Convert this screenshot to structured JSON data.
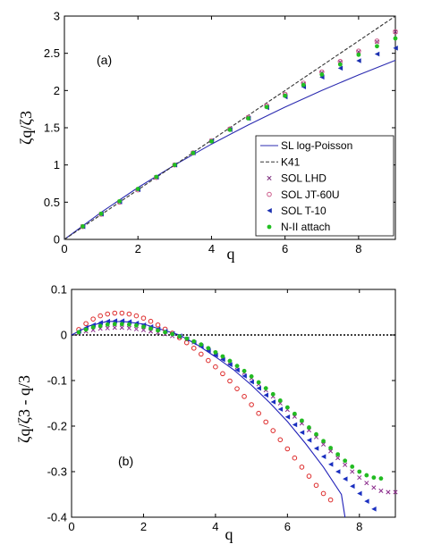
{
  "chart_data": [
    {
      "type": "line",
      "panel_label": "(a)",
      "xlabel": "q",
      "ylabel": "ζq/ζ3",
      "xlim": [
        0,
        9
      ],
      "ylim": [
        0,
        3
      ],
      "xticks": [
        "0",
        "2",
        "4",
        "6",
        "8"
      ],
      "yticks": [
        "0",
        "0.5",
        "1",
        "1.5",
        "2",
        "2.5",
        "3"
      ],
      "legend": {
        "placement": "lower-right",
        "entries": [
          "SL log-Poisson",
          "K41",
          "SOL LHD",
          "SOL JT-60U",
          "SOL T-10",
          "N-II attach"
        ]
      },
      "series": [
        {
          "name": "SL log-Poisson",
          "style": "solid-line",
          "color": "#2b2bb0",
          "x": [
            0,
            1,
            2,
            3,
            4,
            5,
            6,
            7,
            8,
            9
          ],
          "y": [
            0,
            0.364,
            0.696,
            1.0,
            1.28,
            1.538,
            1.778,
            2.001,
            2.21,
            2.406
          ]
        },
        {
          "name": "K41",
          "style": "dashed-line",
          "color": "#333333",
          "x": [
            0,
            9
          ],
          "y": [
            0,
            3.0
          ]
        },
        {
          "name": "SOL LHD",
          "style": "x-marker",
          "color": "#7a2a7a",
          "x": [
            0.5,
            1,
            1.5,
            2,
            2.5,
            3,
            3.5,
            4,
            4.5,
            5,
            5.5,
            6,
            6.5,
            7,
            7.5,
            8,
            8.5,
            9
          ],
          "y": [
            0.173,
            0.34,
            0.503,
            0.669,
            0.835,
            1.0,
            1.162,
            1.323,
            1.48,
            1.635,
            1.788,
            1.94,
            2.09,
            2.24,
            2.383,
            2.52,
            2.655,
            2.787
          ]
        },
        {
          "name": "SOL JT-60U",
          "style": "o-marker",
          "color": "#cc5a8a",
          "x": [
            0.5,
            1,
            1.5,
            2,
            2.5,
            3,
            3.5,
            4,
            4.5,
            5,
            5.5,
            6,
            6.5,
            7,
            7.5,
            8,
            8.5,
            9
          ],
          "y": [
            0.172,
            0.338,
            0.5,
            0.665,
            0.832,
            1.0,
            1.163,
            1.325,
            1.484,
            1.64,
            1.795,
            1.95,
            2.1,
            2.25,
            2.39,
            2.53,
            2.665,
            2.79
          ]
        },
        {
          "name": "SOL T-10",
          "style": "triangle-marker",
          "color": "#1a2fb0",
          "x": [
            0.5,
            1,
            1.5,
            2,
            2.5,
            3,
            3.5,
            4,
            4.5,
            5,
            5.5,
            6,
            6.5,
            7,
            7.5,
            8,
            8.5,
            9
          ],
          "y": [
            0.172,
            0.34,
            0.505,
            0.67,
            0.836,
            1.0,
            1.163,
            1.323,
            1.475,
            1.625,
            1.77,
            1.915,
            2.05,
            2.18,
            2.3,
            2.4,
            2.49,
            2.57
          ]
        },
        {
          "name": "N-II attach",
          "style": "dot-marker",
          "color": "#22c022",
          "x": [
            0.5,
            1,
            1.5,
            2,
            2.5,
            3,
            3.5,
            4,
            4.5,
            5,
            5.5,
            6,
            6.5,
            7,
            7.5,
            8,
            8.5,
            9
          ],
          "y": [
            0.175,
            0.345,
            0.512,
            0.678,
            0.84,
            1.0,
            1.16,
            1.317,
            1.472,
            1.626,
            1.778,
            1.93,
            2.075,
            2.215,
            2.35,
            2.48,
            2.595,
            2.7
          ]
        }
      ]
    },
    {
      "type": "line",
      "panel_label": "(b)",
      "xlabel": "q",
      "ylabel": "ζq/ζ3 - q/3",
      "xlim": [
        0,
        9
      ],
      "ylim": [
        -0.4,
        0.1
      ],
      "xticks": [
        "0",
        "2",
        "4",
        "6",
        "8"
      ],
      "yticks": [
        "0.1",
        "0",
        "-0.1",
        "-0.2",
        "-0.3",
        "-0.4"
      ],
      "series": [
        {
          "name": "zero line",
          "style": "dotted-line",
          "color": "#000000",
          "x": [
            0,
            9
          ],
          "y": [
            0,
            0
          ]
        },
        {
          "name": "SL log-Poisson",
          "style": "solid-line",
          "color": "#2020b8",
          "x": [
            0,
            0.5,
            1,
            1.5,
            2,
            2.5,
            3,
            3.5,
            4,
            4.5,
            5,
            5.5,
            6,
            6.5,
            7,
            7.5,
            7.6
          ],
          "y": [
            0,
            0.02,
            0.03,
            0.029,
            0.024,
            0.012,
            0,
            -0.022,
            -0.048,
            -0.076,
            -0.11,
            -0.148,
            -0.19,
            -0.238,
            -0.29,
            -0.35,
            -0.4
          ]
        },
        {
          "name": "SOL LHD",
          "style": "x-marker",
          "color": "#8a2a8a",
          "x": [
            0.2,
            0.4,
            0.6,
            0.8,
            1.0,
            1.2,
            1.4,
            1.6,
            1.8,
            2.0,
            2.2,
            2.4,
            2.6,
            2.8,
            3.0,
            3.2,
            3.4,
            3.6,
            3.8,
            4.0,
            4.2,
            4.4,
            4.6,
            4.8,
            5.0,
            5.2,
            5.4,
            5.6,
            5.8,
            6.0,
            6.2,
            6.4,
            6.6,
            6.8,
            7.0,
            7.2,
            7.4,
            7.6,
            7.8,
            8.0,
            8.2,
            8.4,
            8.6,
            8.8,
            9.0
          ],
          "y": [
            0.004,
            0.008,
            0.011,
            0.014,
            0.015,
            0.016,
            0.016,
            0.015,
            0.013,
            0.011,
            0.008,
            0.005,
            0.002,
            -0.002,
            -0.005,
            -0.01,
            -0.016,
            -0.023,
            -0.031,
            -0.04,
            -0.05,
            -0.06,
            -0.071,
            -0.083,
            -0.095,
            -0.108,
            -0.121,
            -0.135,
            -0.15,
            -0.164,
            -0.179,
            -0.194,
            -0.209,
            -0.224,
            -0.24,
            -0.255,
            -0.27,
            -0.285,
            -0.3,
            -0.313,
            -0.325,
            -0.335,
            -0.342,
            -0.345,
            -0.345
          ]
        },
        {
          "name": "SOL JT-60U",
          "style": "o-marker",
          "color": "#dd2a2a",
          "x": [
            0.2,
            0.4,
            0.6,
            0.8,
            1.0,
            1.2,
            1.4,
            1.6,
            1.8,
            2.0,
            2.2,
            2.4,
            2.6,
            2.8,
            3.0,
            3.2,
            3.4,
            3.6,
            3.8,
            4.0,
            4.2,
            4.4,
            4.6,
            4.8,
            5.0,
            5.2,
            5.4,
            5.6,
            5.8,
            6.0,
            6.2,
            6.4,
            6.6,
            6.8,
            7.0,
            7.2
          ],
          "y": [
            0.012,
            0.025,
            0.035,
            0.042,
            0.046,
            0.048,
            0.048,
            0.046,
            0.042,
            0.037,
            0.03,
            0.022,
            0.013,
            0.004,
            -0.006,
            -0.017,
            -0.029,
            -0.042,
            -0.056,
            -0.07,
            -0.085,
            -0.101,
            -0.118,
            -0.135,
            -0.153,
            -0.172,
            -0.191,
            -0.21,
            -0.23,
            -0.25,
            -0.27,
            -0.29,
            -0.31,
            -0.33,
            -0.348,
            -0.362
          ]
        },
        {
          "name": "SOL T-10",
          "style": "triangle-marker",
          "color": "#1a2fc0",
          "x": [
            0.2,
            0.4,
            0.6,
            0.8,
            1.0,
            1.2,
            1.4,
            1.6,
            1.8,
            2.0,
            2.2,
            2.4,
            2.6,
            2.8,
            3.0,
            3.2,
            3.4,
            3.6,
            3.8,
            4.0,
            4.2,
            4.4,
            4.6,
            4.8,
            5.0,
            5.2,
            5.4,
            5.6,
            5.8,
            6.0,
            6.2,
            6.4,
            6.6,
            6.8,
            7.0,
            7.2,
            7.4,
            7.6,
            7.8,
            8.0,
            8.2,
            8.4
          ],
          "y": [
            0.008,
            0.016,
            0.022,
            0.027,
            0.03,
            0.031,
            0.031,
            0.029,
            0.026,
            0.022,
            0.018,
            0.013,
            0.008,
            0.003,
            -0.002,
            -0.009,
            -0.017,
            -0.025,
            -0.034,
            -0.044,
            -0.054,
            -0.065,
            -0.077,
            -0.09,
            -0.103,
            -0.117,
            -0.132,
            -0.147,
            -0.163,
            -0.18,
            -0.197,
            -0.214,
            -0.231,
            -0.249,
            -0.267,
            -0.284,
            -0.3,
            -0.316,
            -0.332,
            -0.348,
            -0.365,
            -0.382
          ]
        },
        {
          "name": "N-II attach",
          "style": "dot-marker",
          "color": "#22bb22",
          "x": [
            0.2,
            0.4,
            0.6,
            0.8,
            1.0,
            1.2,
            1.4,
            1.6,
            1.8,
            2.0,
            2.2,
            2.4,
            2.6,
            2.8,
            3.0,
            3.2,
            3.4,
            3.6,
            3.8,
            4.0,
            4.2,
            4.4,
            4.6,
            4.8,
            5.0,
            5.2,
            5.4,
            5.6,
            5.8,
            6.0,
            6.2,
            6.4,
            6.6,
            6.8,
            7.0,
            7.2,
            7.4,
            7.6,
            7.8,
            8.0,
            8.2,
            8.4,
            8.6
          ],
          "y": [
            0.006,
            0.012,
            0.017,
            0.02,
            0.023,
            0.024,
            0.024,
            0.023,
            0.021,
            0.018,
            0.014,
            0.01,
            0.006,
            0.002,
            -0.003,
            -0.008,
            -0.014,
            -0.021,
            -0.029,
            -0.038,
            -0.047,
            -0.057,
            -0.068,
            -0.079,
            -0.091,
            -0.104,
            -0.117,
            -0.13,
            -0.144,
            -0.159,
            -0.173,
            -0.188,
            -0.203,
            -0.218,
            -0.233,
            -0.248,
            -0.262,
            -0.276,
            -0.289,
            -0.3,
            -0.308,
            -0.313,
            -0.315
          ]
        }
      ]
    }
  ]
}
